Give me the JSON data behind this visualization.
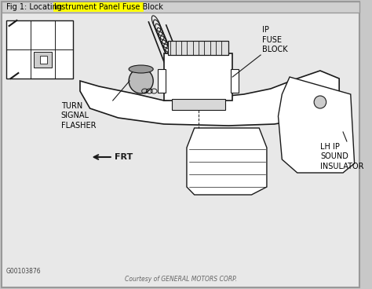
{
  "title_normal": "Fig 1: Locating ",
  "title_highlight": "Instrument Panel Fuse Block",
  "outer_bg": "#c8c8c8",
  "inner_bg": "#e8e8e8",
  "white": "#ffffff",
  "title_bar_bg": "#d0d0d0",
  "highlight_color": "#ffff00",
  "text_color": "#000000",
  "gray_text": "#555555",
  "border_color": "#999999",
  "draw_color": "#1a1a1a",
  "labels": {
    "ip_fuse_block": "IP\nFUSE\nBLOCK",
    "turn_signal": "TURN\nSIGNAL\nFLASHER",
    "lh_ip": "LH IP\nSOUND\nINSULATOR",
    "frt": "◄FRT",
    "courtesy": "Courtesy of GENERAL MOTORS CORP.",
    "part_number": "G00103876"
  },
  "figsize": [
    4.74,
    3.68
  ],
  "dpi": 100
}
